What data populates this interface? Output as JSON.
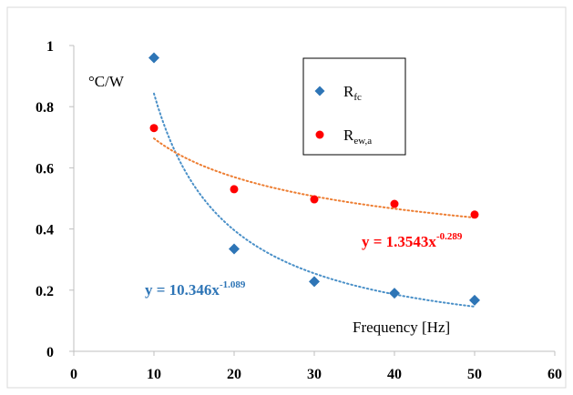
{
  "chart_data": {
    "type": "scatter",
    "title": "",
    "ylabel_unit": "°C/W",
    "xlabel": "Frequency [Hz]",
    "xlim": [
      0,
      60
    ],
    "ylim": [
      0,
      1
    ],
    "x_ticks": [
      "0",
      "10",
      "20",
      "30",
      "40",
      "50",
      "60"
    ],
    "y_ticks": [
      "0",
      "0.2",
      "0.4",
      "0.6",
      "0.8",
      "1"
    ],
    "grid": false,
    "legend_position": "top-right",
    "series": [
      {
        "name": "R",
        "name_sub": "fc",
        "marker": "diamond",
        "color": "#2E75B6",
        "x": [
          10,
          20,
          30,
          40,
          50
        ],
        "y": [
          0.96,
          0.335,
          0.228,
          0.19,
          0.167
        ],
        "trendline": {
          "type": "power",
          "a": 10.346,
          "b": -1.089,
          "color": "#4A90C8",
          "equation_prefix": "y = 10.346x",
          "equation_exp": "-1.089",
          "equation_color": "#2E75B6"
        }
      },
      {
        "name": "R",
        "name_sub": "ew,a",
        "marker": "circle",
        "color": "#FF0000",
        "x": [
          10,
          20,
          30,
          40,
          50
        ],
        "y": [
          0.73,
          0.53,
          0.497,
          0.482,
          0.447
        ],
        "trendline": {
          "type": "power",
          "a": 1.3543,
          "b": -0.289,
          "color": "#ED7D31",
          "equation_prefix": "y = 1.3543x",
          "equation_exp": "-0.289",
          "equation_color": "#FF0000"
        }
      }
    ]
  }
}
